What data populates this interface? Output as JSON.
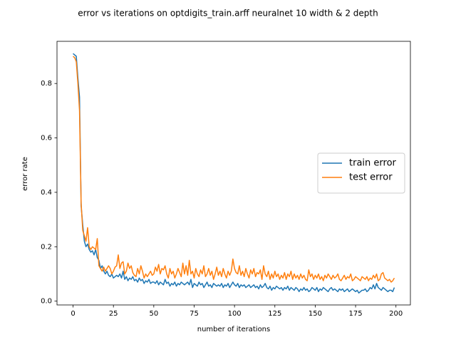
{
  "chart_data": {
    "type": "line",
    "title": "error vs iterations on optdigits_train.arff neuralnet 10 width & 2 depth",
    "xlabel": "number of iterations",
    "ylabel": "error rate",
    "x": [
      0,
      1,
      2,
      3,
      4,
      5,
      6,
      7,
      8,
      9,
      10,
      11,
      12,
      13,
      14,
      15,
      16,
      17,
      18,
      19,
      20,
      21,
      22,
      23,
      24,
      25,
      26,
      27,
      28,
      29,
      30,
      31,
      32,
      33,
      34,
      35,
      36,
      37,
      38,
      39,
      40,
      41,
      42,
      43,
      44,
      45,
      46,
      47,
      48,
      49,
      50,
      51,
      52,
      53,
      54,
      55,
      56,
      57,
      58,
      59,
      60,
      61,
      62,
      63,
      64,
      65,
      66,
      67,
      68,
      69,
      70,
      71,
      72,
      73,
      74,
      75,
      76,
      77,
      78,
      79,
      80,
      81,
      82,
      83,
      84,
      85,
      86,
      87,
      88,
      89,
      90,
      91,
      92,
      93,
      94,
      95,
      96,
      97,
      98,
      99,
      100,
      101,
      102,
      103,
      104,
      105,
      106,
      107,
      108,
      109,
      110,
      111,
      112,
      113,
      114,
      115,
      116,
      117,
      118,
      119,
      120,
      121,
      122,
      123,
      124,
      125,
      126,
      127,
      128,
      129,
      130,
      131,
      132,
      133,
      134,
      135,
      136,
      137,
      138,
      139,
      140,
      141,
      142,
      143,
      144,
      145,
      146,
      147,
      148,
      149,
      150,
      151,
      152,
      153,
      154,
      155,
      156,
      157,
      158,
      159,
      160,
      161,
      162,
      163,
      164,
      165,
      166,
      167,
      168,
      169,
      170,
      171,
      172,
      173,
      174,
      175,
      176,
      177,
      178,
      179,
      180,
      181,
      182,
      183,
      184,
      185,
      186,
      187,
      188,
      189,
      190,
      191,
      192,
      193,
      194,
      195,
      196,
      197,
      198,
      199
    ],
    "series": [
      {
        "name": "train error",
        "color": "#1f77b4",
        "values": [
          0.91,
          0.905,
          0.9,
          0.82,
          0.75,
          0.35,
          0.28,
          0.22,
          0.2,
          0.21,
          0.19,
          0.18,
          0.185,
          0.17,
          0.19,
          0.16,
          0.15,
          0.12,
          0.13,
          0.11,
          0.1,
          0.11,
          0.095,
          0.09,
          0.1,
          0.085,
          0.09,
          0.095,
          0.09,
          0.1,
          0.085,
          0.11,
          0.08,
          0.09,
          0.075,
          0.085,
          0.08,
          0.09,
          0.075,
          0.08,
          0.07,
          0.085,
          0.075,
          0.08,
          0.065,
          0.075,
          0.07,
          0.08,
          0.065,
          0.07,
          0.07,
          0.065,
          0.075,
          0.06,
          0.07,
          0.065,
          0.06,
          0.08,
          0.065,
          0.07,
          0.055,
          0.065,
          0.06,
          0.07,
          0.055,
          0.065,
          0.06,
          0.07,
          0.065,
          0.06,
          0.065,
          0.07,
          0.06,
          0.08,
          0.05,
          0.065,
          0.06,
          0.055,
          0.07,
          0.06,
          0.065,
          0.05,
          0.06,
          0.07,
          0.055,
          0.06,
          0.05,
          0.065,
          0.06,
          0.055,
          0.06,
          0.055,
          0.065,
          0.05,
          0.06,
          0.055,
          0.065,
          0.05,
          0.06,
          0.07,
          0.06,
          0.055,
          0.065,
          0.05,
          0.06,
          0.055,
          0.06,
          0.05,
          0.055,
          0.06,
          0.05,
          0.055,
          0.06,
          0.05,
          0.055,
          0.045,
          0.06,
          0.05,
          0.055,
          0.065,
          0.05,
          0.045,
          0.055,
          0.04,
          0.05,
          0.045,
          0.055,
          0.05,
          0.045,
          0.05,
          0.04,
          0.05,
          0.045,
          0.055,
          0.04,
          0.05,
          0.045,
          0.04,
          0.05,
          0.045,
          0.035,
          0.045,
          0.04,
          0.05,
          0.04,
          0.045,
          0.035,
          0.04,
          0.05,
          0.045,
          0.04,
          0.05,
          0.035,
          0.045,
          0.04,
          0.05,
          0.045,
          0.04,
          0.035,
          0.045,
          0.05,
          0.04,
          0.045,
          0.04,
          0.035,
          0.045,
          0.04,
          0.045,
          0.035,
          0.04,
          0.045,
          0.035,
          0.04,
          0.045,
          0.04,
          0.035,
          0.04,
          0.03,
          0.035,
          0.04,
          0.04,
          0.045,
          0.035,
          0.04,
          0.05,
          0.045,
          0.06,
          0.045,
          0.065,
          0.05,
          0.045,
          0.04,
          0.05,
          0.045,
          0.04,
          0.035,
          0.04,
          0.04,
          0.035,
          0.05
        ]
      },
      {
        "name": "test error",
        "color": "#ff7f0e",
        "values": [
          0.9,
          0.895,
          0.88,
          0.8,
          0.7,
          0.36,
          0.26,
          0.24,
          0.22,
          0.27,
          0.2,
          0.19,
          0.2,
          0.195,
          0.19,
          0.23,
          0.13,
          0.12,
          0.11,
          0.125,
          0.11,
          0.12,
          0.13,
          0.12,
          0.1,
          0.11,
          0.125,
          0.13,
          0.17,
          0.12,
          0.14,
          0.145,
          0.1,
          0.11,
          0.14,
          0.12,
          0.13,
          0.105,
          0.095,
          0.09,
          0.12,
          0.1,
          0.13,
          0.11,
          0.085,
          0.1,
          0.09,
          0.1,
          0.11,
          0.095,
          0.1,
          0.125,
          0.11,
          0.135,
          0.1,
          0.12,
          0.115,
          0.13,
          0.1,
          0.085,
          0.12,
          0.1,
          0.11,
          0.085,
          0.1,
          0.12,
          0.105,
          0.09,
          0.14,
          0.1,
          0.13,
          0.095,
          0.15,
          0.1,
          0.11,
          0.085,
          0.12,
          0.1,
          0.09,
          0.115,
          0.1,
          0.13,
          0.09,
          0.1,
          0.12,
          0.095,
          0.11,
          0.08,
          0.1,
          0.125,
          0.095,
          0.11,
          0.09,
          0.12,
          0.1,
          0.085,
          0.11,
          0.095,
          0.11,
          0.155,
          0.12,
          0.105,
          0.1,
          0.13,
          0.095,
          0.11,
          0.09,
          0.12,
          0.1,
          0.085,
          0.115,
          0.1,
          0.12,
          0.09,
          0.105,
          0.1,
          0.115,
          0.08,
          0.13,
          0.1,
          0.09,
          0.11,
          0.08,
          0.1,
          0.085,
          0.11,
          0.09,
          0.1,
          0.08,
          0.095,
          0.085,
          0.105,
          0.08,
          0.1,
          0.09,
          0.11,
          0.08,
          0.1,
          0.085,
          0.095,
          0.08,
          0.1,
          0.085,
          0.095,
          0.08,
          0.075,
          0.115,
          0.09,
          0.1,
          0.08,
          0.095,
          0.085,
          0.1,
          0.08,
          0.09,
          0.075,
          0.095,
          0.085,
          0.1,
          0.09,
          0.08,
          0.095,
          0.085,
          0.09,
          0.1,
          0.08,
          0.075,
          0.085,
          0.095,
          0.08,
          0.09,
          0.085,
          0.1,
          0.075,
          0.08,
          0.09,
          0.085,
          0.08,
          0.075,
          0.09,
          0.085,
          0.08,
          0.09,
          0.075,
          0.085,
          0.08,
          0.095,
          0.085,
          0.1,
          0.075,
          0.08,
          0.1,
          0.105,
          0.085,
          0.08,
          0.075,
          0.08,
          0.07,
          0.075,
          0.085
        ]
      }
    ],
    "xlim": [
      -9.95,
      208.95
    ],
    "ylim": [
      -0.014,
      0.955
    ],
    "xticks": [
      0,
      25,
      50,
      75,
      100,
      125,
      150,
      175,
      200
    ],
    "yticks": [
      {
        "value": 0,
        "label": "0.0"
      },
      {
        "value": 0.2,
        "label": "0.2"
      },
      {
        "value": 0.4,
        "label": "0.4"
      },
      {
        "value": 0.6,
        "label": "0.6"
      },
      {
        "value": 0.8,
        "label": "0.8"
      }
    ],
    "legend": "center right",
    "grid": false
  }
}
